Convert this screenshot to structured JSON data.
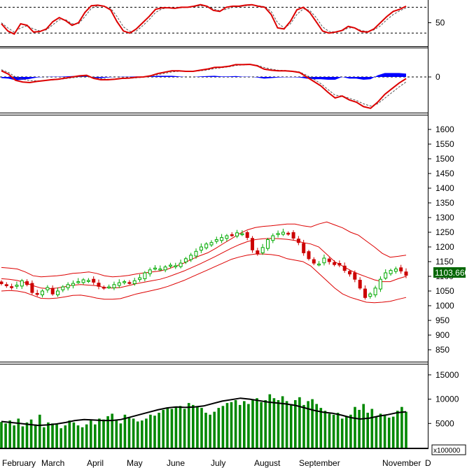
{
  "chart_data": [
    {
      "type": "line",
      "panel": "oscillator",
      "ylim": [
        10,
        90
      ],
      "yticks": [
        50
      ],
      "reference_lines": [
        80,
        30
      ],
      "series": [
        {
          "role": "main",
          "color": "#dd0000",
          "values": [
            48,
            34,
            28,
            48,
            45,
            32,
            33,
            38,
            52,
            60,
            54,
            45,
            50,
            70,
            83,
            84,
            82,
            75,
            52,
            34,
            30,
            38,
            50,
            62,
            76,
            79,
            79,
            78,
            80,
            80,
            82,
            85,
            82,
            74,
            72,
            80,
            82,
            82,
            84,
            85,
            82,
            80,
            66,
            40,
            38,
            53,
            75,
            80,
            70,
            52,
            34,
            30,
            32,
            35,
            43,
            40,
            33,
            32,
            38,
            50,
            62,
            72,
            76,
            82
          ]
        },
        {
          "role": "signal",
          "color": "#555555",
          "values": [
            50,
            40,
            32,
            40,
            44,
            38,
            34,
            36,
            46,
            56,
            56,
            48,
            48,
            62,
            78,
            83,
            82,
            78,
            62,
            42,
            33,
            34,
            44,
            56,
            70,
            77,
            79,
            78,
            79,
            80,
            81,
            83,
            82,
            77,
            73,
            76,
            80,
            81,
            83,
            84,
            83,
            81,
            72,
            50,
            40,
            48,
            66,
            77,
            74,
            60,
            42,
            33,
            32,
            34,
            40,
            40,
            35,
            33,
            36,
            44,
            56,
            66,
            73,
            79
          ]
        }
      ]
    },
    {
      "type": "line",
      "panel": "macd",
      "yticks": [
        0
      ],
      "series": [
        {
          "role": "main",
          "color": "#dd0000",
          "values": [
            22,
            10,
            -12,
            -18,
            -20,
            -16,
            -13,
            -10,
            -8,
            -4,
            0,
            4,
            6,
            -5,
            -10,
            -10,
            -8,
            -5,
            -4,
            -1,
            0,
            4,
            12,
            17,
            22,
            22,
            20,
            20,
            24,
            28,
            34,
            35,
            38,
            44,
            44,
            45,
            40,
            28,
            24,
            22,
            22,
            20,
            16,
            0,
            -16,
            -32,
            -55,
            -75,
            -68,
            -82,
            -90,
            -106,
            -112,
            -90,
            -62,
            -42,
            -22,
            -6
          ]
        },
        {
          "role": "signal",
          "color": "#555555",
          "values": [
            26,
            16,
            0,
            -8,
            -13,
            -14,
            -13,
            -11,
            -9,
            -6,
            -3,
            0,
            2,
            -2,
            -6,
            -8,
            -8,
            -6,
            -5,
            -3,
            -1,
            2,
            8,
            13,
            18,
            20,
            20,
            20,
            22,
            25,
            30,
            33,
            36,
            41,
            43,
            44,
            42,
            34,
            28,
            24,
            23,
            21,
            18,
            6,
            -8,
            -24,
            -45,
            -65,
            -68,
            -76,
            -84,
            -96,
            -104,
            -96,
            -76,
            -56,
            -36,
            -18
          ]
        },
        {
          "role": "histogram",
          "color": "#0000ff",
          "values": [
            -4,
            -6,
            -12,
            -10,
            -7,
            -2,
            0,
            1,
            1,
            2,
            3,
            4,
            4,
            -3,
            -4,
            -2,
            0,
            1,
            1,
            2,
            1,
            2,
            4,
            4,
            4,
            2,
            0,
            0,
            2,
            3,
            4,
            2,
            2,
            3,
            1,
            1,
            -2,
            -6,
            -4,
            -2,
            -1,
            -1,
            -2,
            -6,
            -8,
            -8,
            -10,
            -10,
            0,
            -6,
            -6,
            -10,
            -8,
            6,
            14,
            14,
            14,
            12
          ]
        }
      ]
    },
    {
      "type": "candlestick",
      "panel": "price",
      "ylim": [
        830,
        1610
      ],
      "yticks": [
        850,
        900,
        950,
        1000,
        1050,
        1100,
        1150,
        1200,
        1250,
        1300,
        1350,
        1400,
        1450,
        1500,
        1550,
        1600
      ],
      "last_value_label": "1103.660",
      "close": [
        1075,
        1068,
        1062,
        1070,
        1085,
        1072,
        1045,
        1040,
        1050,
        1062,
        1040,
        1050,
        1064,
        1072,
        1076,
        1082,
        1088,
        1086,
        1080,
        1066,
        1060,
        1064,
        1072,
        1078,
        1082,
        1078,
        1085,
        1095,
        1112,
        1122,
        1128,
        1125,
        1132,
        1138,
        1136,
        1145,
        1160,
        1172,
        1185,
        1200,
        1210,
        1215,
        1225,
        1232,
        1238,
        1240,
        1248,
        1245,
        1232,
        1190,
        1176,
        1198,
        1225,
        1238,
        1246,
        1250,
        1245,
        1230,
        1215,
        1180,
        1160,
        1145,
        1142,
        1162,
        1150,
        1140,
        1138,
        1120,
        1108,
        1090,
        1060,
        1028,
        1040,
        1060,
        1090,
        1112,
        1120,
        1125,
        1118,
        1103.66
      ],
      "upper_band": [
        1130,
        1128,
        1125,
        1115,
        1102,
        1098,
        1100,
        1102,
        1105,
        1110,
        1112,
        1115,
        1110,
        1102,
        1098,
        1100,
        1103,
        1108,
        1112,
        1115,
        1118,
        1125,
        1135,
        1145,
        1158,
        1170,
        1180,
        1195,
        1212,
        1228,
        1245,
        1258,
        1266,
        1270,
        1272,
        1275,
        1278,
        1278,
        1272,
        1268,
        1278,
        1285,
        1275,
        1265,
        1250,
        1240,
        1220,
        1200,
        1178,
        1165,
        1168,
        1172
      ],
      "middle_band": [
        1092,
        1090,
        1086,
        1078,
        1068,
        1060,
        1058,
        1060,
        1065,
        1070,
        1072,
        1070,
        1068,
        1062,
        1060,
        1062,
        1068,
        1075,
        1080,
        1085,
        1090,
        1098,
        1108,
        1118,
        1130,
        1142,
        1155,
        1168,
        1182,
        1196,
        1208,
        1218,
        1225,
        1228,
        1229,
        1228,
        1226,
        1222,
        1215,
        1210,
        1200,
        1175,
        1150,
        1135,
        1120,
        1108,
        1098,
        1088,
        1082,
        1082,
        1092,
        1100
      ],
      "lower_band": [
        1050,
        1052,
        1050,
        1045,
        1035,
        1025,
        1024,
        1026,
        1030,
        1035,
        1036,
        1032,
        1026,
        1022,
        1022,
        1024,
        1032,
        1040,
        1046,
        1052,
        1058,
        1066,
        1076,
        1086,
        1098,
        1110,
        1122,
        1134,
        1146,
        1158,
        1166,
        1172,
        1176,
        1176,
        1174,
        1170,
        1160,
        1155,
        1150,
        1135,
        1110,
        1085,
        1060,
        1040,
        1028,
        1020,
        1012,
        1010,
        1012,
        1015,
        1022,
        1028
      ]
    },
    {
      "type": "bar",
      "panel": "volume",
      "ylim": [
        0,
        17000
      ],
      "yticks": [
        5000,
        10000,
        15000
      ],
      "unit_label": "x100000",
      "values": [
        5300,
        5000,
        5600,
        4600,
        6000,
        4400,
        5200,
        5800,
        4800,
        6800,
        4200,
        5200,
        5000,
        4800,
        4000,
        4600,
        5600,
        5200,
        4600,
        4200,
        4800,
        5600,
        4800,
        6000,
        5800,
        6500,
        7000,
        5600,
        5000,
        6800,
        6200,
        6000,
        5400,
        5600,
        6000,
        6800,
        6600,
        7200,
        7800,
        8200,
        8000,
        8400,
        8600,
        8000,
        9200,
        8800,
        8400,
        8200,
        7200,
        6800,
        7400,
        8200,
        8600,
        9200,
        9400,
        9800,
        8800,
        9600,
        9000,
        10000,
        10200,
        9400,
        9800,
        11000,
        10200,
        9800,
        10600,
        9600,
        9000,
        9800,
        10400,
        8800,
        9600,
        10000,
        9000,
        8200,
        7600,
        7000,
        6800,
        7200,
        6000,
        6400,
        6800,
        8400,
        7800,
        9000,
        7200,
        8000,
        6400,
        7000,
        6800,
        6200,
        6400,
        7600,
        8400,
        7400
      ],
      "moving_average": [
        5400,
        5200,
        5000,
        4800,
        4600,
        4700,
        4900,
        5200,
        5600,
        5800,
        5700,
        5600,
        5600,
        5800,
        6300,
        6800,
        7300,
        7800,
        8200,
        8400,
        8300,
        8400,
        8600,
        9100,
        9600,
        9900,
        10200,
        10000,
        9700,
        9400,
        9200,
        9000,
        8700,
        8200,
        7700,
        7300,
        7100,
        6700,
        6200,
        5900,
        6100,
        6500,
        6800,
        7200,
        7400
      ]
    }
  ],
  "x_axis": {
    "months": [
      "February",
      "March",
      "April",
      "May",
      "June",
      "July",
      "August",
      "September",
      "November",
      "D"
    ]
  },
  "colors": {
    "up": "#00aa00",
    "down": "#cc0000",
    "band": "#dd0000",
    "volume": "#008800",
    "price_label_bg": "#006600"
  }
}
